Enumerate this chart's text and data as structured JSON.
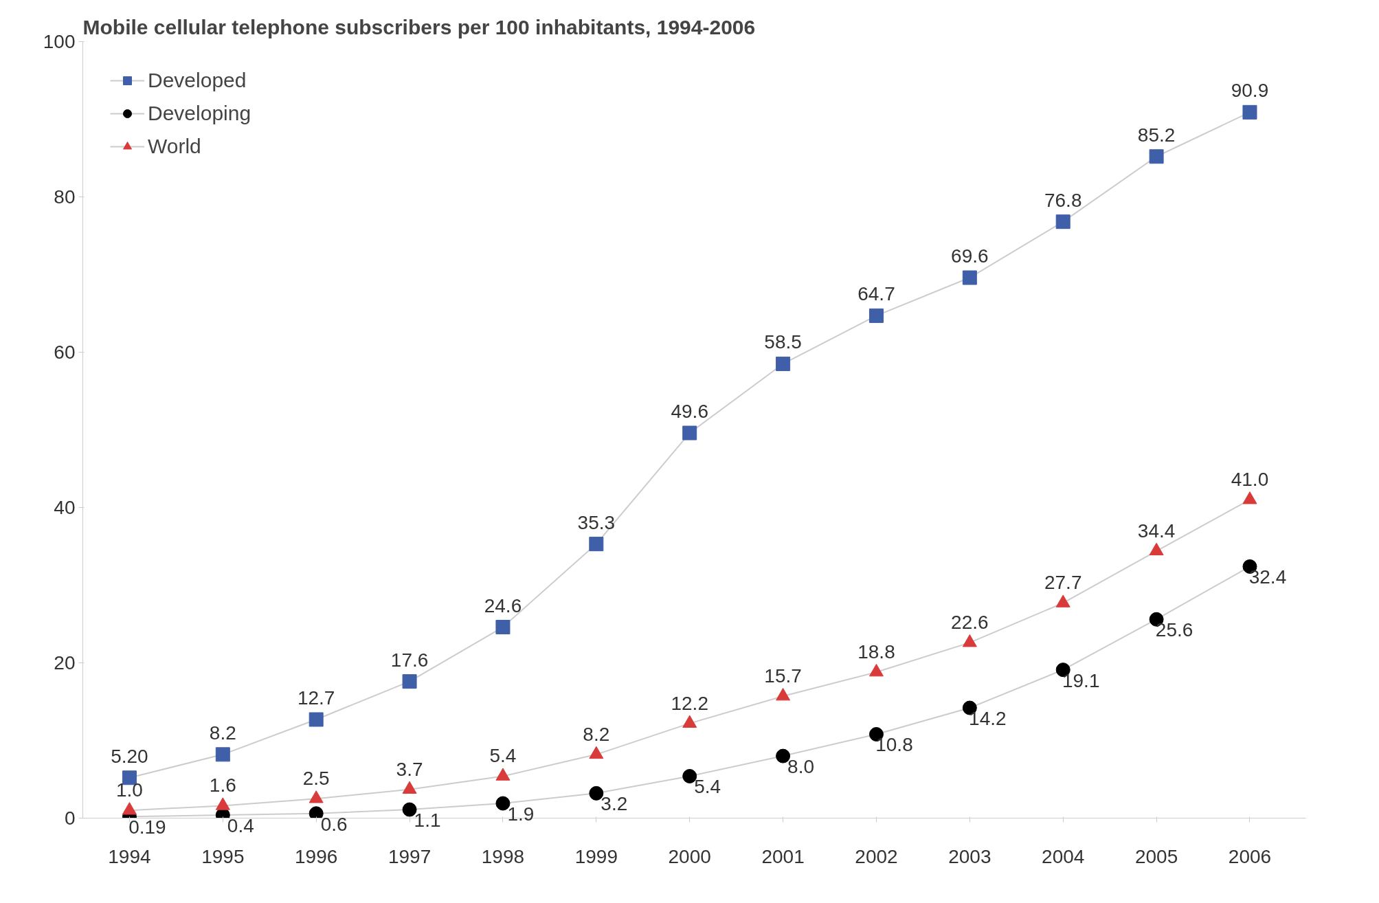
{
  "chart_data": {
    "type": "line",
    "title": "Mobile cellular telephone subscribers per 100 inhabitants, 1994-2006",
    "categories": [
      "1994",
      "1995",
      "1996",
      "1997",
      "1998",
      "1999",
      "2000",
      "2001",
      "2002",
      "2003",
      "2004",
      "2005",
      "2006"
    ],
    "series": [
      {
        "name": "Developed",
        "color": "#3f5fa8",
        "marker": "square",
        "values": [
          5.2,
          8.2,
          12.7,
          17.6,
          24.6,
          35.3,
          49.6,
          58.5,
          64.7,
          69.6,
          76.8,
          85.2,
          90.9
        ],
        "value_labels": [
          "5.20",
          "8.2",
          "12.7",
          "17.6",
          "24.6",
          "35.3",
          "49.6",
          "58.5",
          "64.7",
          "69.6",
          "76.8",
          "85.2",
          "90.9"
        ]
      },
      {
        "name": "Developing",
        "color": "#000000",
        "marker": "circle",
        "values": [
          0.19,
          0.4,
          0.6,
          1.1,
          1.9,
          3.2,
          5.4,
          8.0,
          10.8,
          14.2,
          19.1,
          25.6,
          32.4
        ],
        "value_labels": [
          "0.19",
          "0.4",
          "0.6",
          "1.1",
          "1.9",
          "3.2",
          "5.4",
          "8.0",
          "10.8",
          "14.2",
          "19.1",
          "25.6",
          "32.4"
        ]
      },
      {
        "name": "World",
        "color": "#d93a3a",
        "marker": "triangle",
        "values": [
          1.0,
          1.6,
          2.5,
          3.7,
          5.4,
          8.2,
          12.2,
          15.7,
          18.8,
          22.6,
          27.7,
          34.4,
          41.0
        ],
        "value_labels": [
          "1.0",
          "1.6",
          "2.5",
          "3.7",
          "5.4",
          "8.2",
          "12.2",
          "15.7",
          "18.8",
          "22.6",
          "27.7",
          "34.4",
          "41.0"
        ]
      }
    ],
    "ylim": [
      0,
      100
    ],
    "yticks": [
      0,
      20,
      40,
      60,
      80,
      100
    ],
    "grid": false,
    "legend": "top left"
  }
}
